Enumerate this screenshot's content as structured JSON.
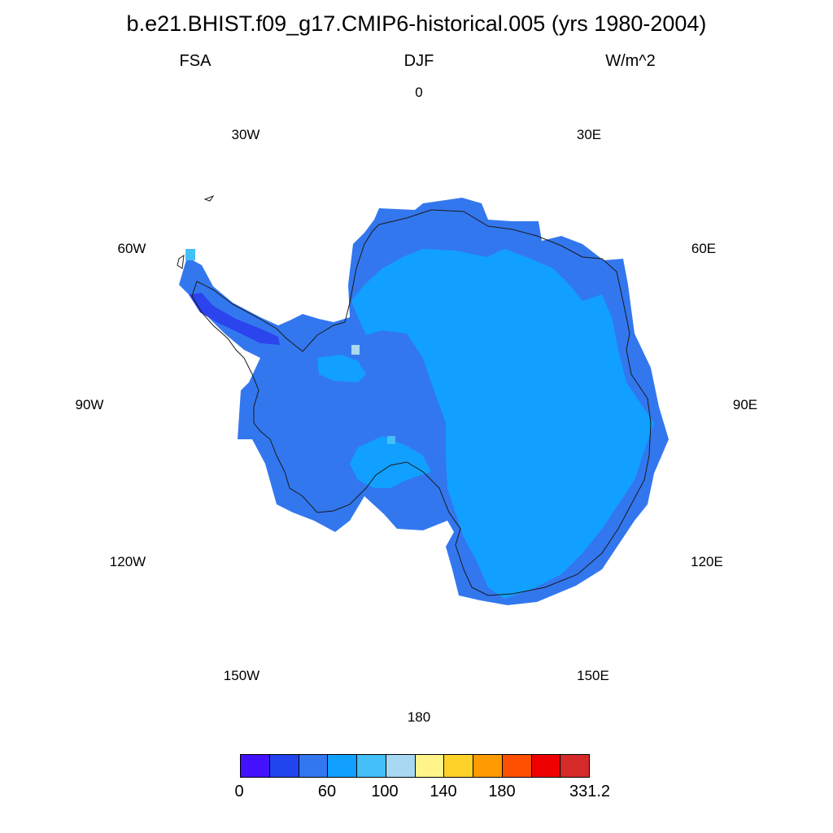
{
  "header": {
    "title": "b.e21.BHIST.f09_g17.CMIP6-historical.005 (yrs 1980-2004)",
    "variable": "FSA",
    "season": "DJF",
    "units": "W/m^2"
  },
  "map": {
    "projection": "south-polar-stereographic",
    "longitude_labels": [
      "0",
      "30E",
      "60E",
      "90E",
      "120E",
      "150E",
      "180",
      "150W",
      "120W",
      "90W",
      "60W",
      "30W"
    ],
    "region_colors": {
      "coast_band": "#3377ee",
      "interior_plateau": "#11a0ff",
      "peninsula_low": "#2b44ee",
      "coastline": "#1a1a1a"
    }
  },
  "colorbar": {
    "colors": [
      "#4411ff",
      "#2244ee",
      "#3377ee",
      "#11a0ff",
      "#44bff7",
      "#a8d8f2",
      "#fff48a",
      "#ffd22a",
      "#ff9a00",
      "#ff4f00",
      "#ee0000",
      "#d52a2a"
    ],
    "tick_labels": [
      "0",
      "60",
      "100",
      "140",
      "180",
      "331.2"
    ]
  }
}
